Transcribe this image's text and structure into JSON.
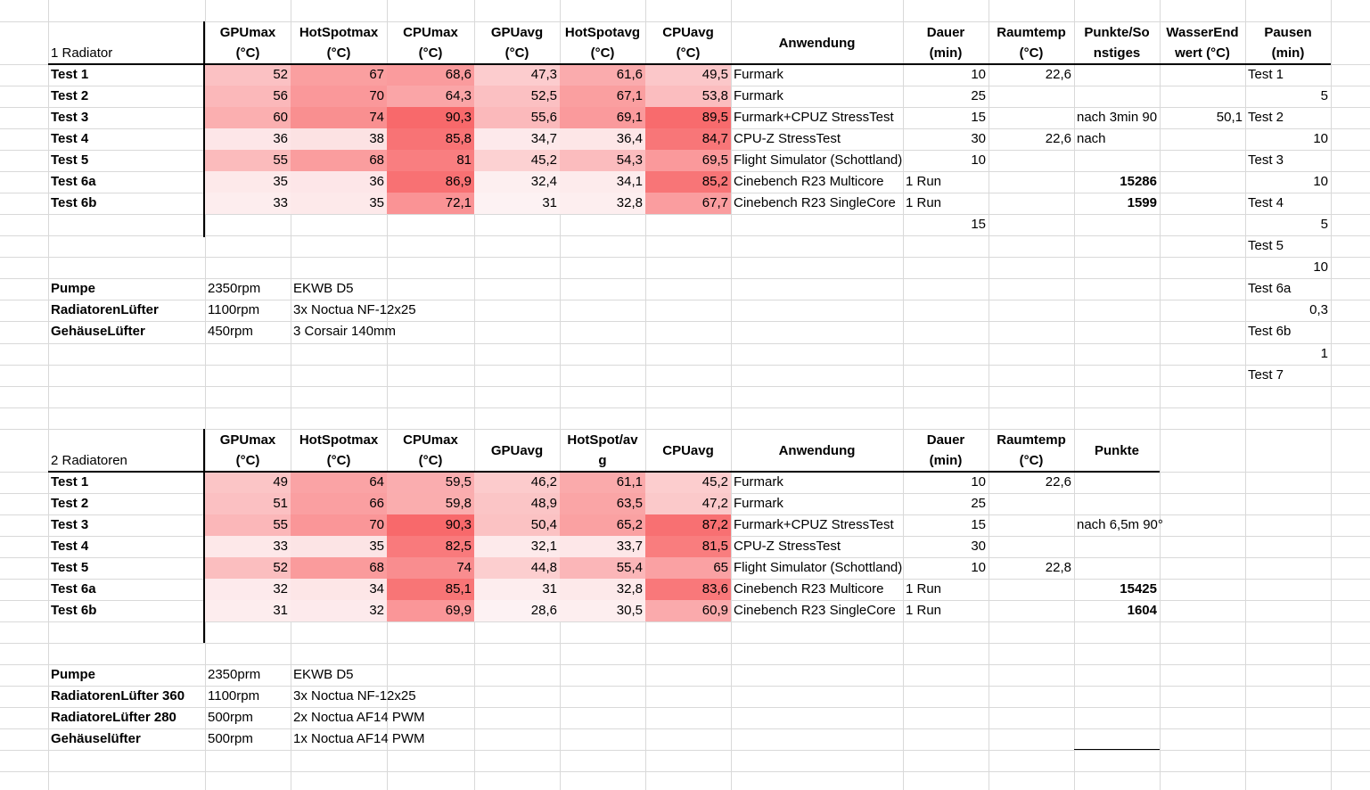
{
  "colors": {
    "heat_low": "#fdf2f3",
    "heat_high": "#f8696b",
    "gridline": "#d9d9d9"
  },
  "section1": {
    "title": "1 Radiator",
    "headers": [
      [
        "GPUmax",
        "(°C)"
      ],
      [
        "HotSpotmax",
        "(°C)"
      ],
      [
        "CPUmax",
        "(°C)"
      ],
      [
        "GPUavg",
        "(°C)"
      ],
      [
        "HotSpotavg",
        "(°C)"
      ],
      [
        "CPUavg",
        "(°C)"
      ],
      [
        "Anwendung",
        ""
      ],
      [
        "Dauer",
        "(min)"
      ],
      [
        "Raumtemp",
        "(°C)"
      ],
      [
        "Punkte/So",
        "nstiges"
      ],
      [
        "WasserEnd",
        "wert (°C)"
      ],
      [
        "Pausen",
        "(min)"
      ]
    ],
    "rows": [
      {
        "label": "Test 1",
        "vals": [
          "52",
          "67",
          "68,6",
          "47,3",
          "61,6",
          "49,5"
        ],
        "app": "Furmark",
        "extra": "",
        "dauer": "10",
        "raum": "22,6",
        "punkte": "",
        "punkte_bold": false,
        "wasser": ""
      },
      {
        "label": "Test 2",
        "vals": [
          "56",
          "70",
          "64,3",
          "52,5",
          "67,1",
          "53,8"
        ],
        "app": "Furmark",
        "extra": "",
        "dauer": "25",
        "raum": "",
        "punkte": "",
        "punkte_bold": false,
        "wasser": ""
      },
      {
        "label": "Test 3",
        "vals": [
          "60",
          "74",
          "90,3",
          "55,6",
          "69,1",
          "89,5"
        ],
        "app": "Furmark+CPUZ StressTest",
        "extra": "",
        "dauer": "15",
        "raum": "",
        "punkte": "nach 3min 90",
        "punkte_bold": false,
        "wasser": "50,1"
      },
      {
        "label": "Test 4",
        "vals": [
          "36",
          "38",
          "85,8",
          "34,7",
          "36,4",
          "84,7"
        ],
        "app": "CPU-Z StressTest",
        "extra": "",
        "dauer": "30",
        "raum": "22,6",
        "punkte": "nach",
        "punkte_bold": false,
        "wasser": ""
      },
      {
        "label": "Test 5",
        "vals": [
          "55",
          "68",
          "81",
          "45,2",
          "54,3",
          "69,5"
        ],
        "app": "Flight Simulator (Schottland)",
        "extra": "",
        "dauer": "10",
        "raum": "",
        "punkte": "",
        "punkte_bold": false,
        "wasser": ""
      },
      {
        "label": "Test 6a",
        "vals": [
          "35",
          "36",
          "86,9",
          "32,4",
          "34,1",
          "85,2"
        ],
        "app": "Cinebench R23 Multicore",
        "extra": "1 Run",
        "dauer": "",
        "raum": "",
        "punkte": "15286",
        "punkte_bold": true,
        "wasser": ""
      },
      {
        "label": "Test 6b",
        "vals": [
          "33",
          "35",
          "72,1",
          "31",
          "32,8",
          "67,7"
        ],
        "app": "Cinebench R23 SingleCore",
        "extra": "1 Run",
        "dauer": "",
        "raum": "",
        "punkte": "1599",
        "punkte_bold": true,
        "wasser": ""
      }
    ],
    "dauer_extra": "15",
    "settings": [
      {
        "label": "Pumpe",
        "rpm": "2350rpm",
        "model": "EKWB D5"
      },
      {
        "label": "RadiatorenLüfter",
        "rpm": "1100rpm",
        "model": "3x Noctua NF-12x25"
      },
      {
        "label": "GehäuseLüfter",
        "rpm": "450rpm",
        "model": "3 Corsair 140mm"
      }
    ]
  },
  "pausen": [
    "Test 1",
    "5",
    "Test 2",
    "10",
    "Test 3",
    "10",
    "Test 4",
    "5",
    "Test 5",
    "10",
    "Test 6a",
    "0,3",
    "Test 6b",
    "1",
    "Test 7"
  ],
  "section2": {
    "title": "2 Radiatoren",
    "headers": [
      [
        "GPUmax",
        "(°C)"
      ],
      [
        "HotSpotmax",
        "(°C)"
      ],
      [
        "CPUmax",
        "(°C)"
      ],
      [
        "GPUavg",
        ""
      ],
      [
        "HotSpot/av",
        "g"
      ],
      [
        "CPUavg",
        ""
      ],
      [
        "Anwendung",
        ""
      ],
      [
        "Dauer",
        "(min)"
      ],
      [
        "Raumtemp",
        "(°C)"
      ],
      [
        "Punkte",
        ""
      ]
    ],
    "rows": [
      {
        "label": "Test 1",
        "vals": [
          "49",
          "64",
          "59,5",
          "46,2",
          "61,1",
          "45,2"
        ],
        "app": "Furmark",
        "extra": "",
        "dauer": "10",
        "raum": "22,6",
        "punkte": "",
        "punkte_bold": false
      },
      {
        "label": "Test 2",
        "vals": [
          "51",
          "66",
          "59,8",
          "48,9",
          "63,5",
          "47,2"
        ],
        "app": "Furmark",
        "extra": "",
        "dauer": "25",
        "raum": "",
        "punkte": "",
        "punkte_bold": false
      },
      {
        "label": "Test 3",
        "vals": [
          "55",
          "70",
          "90,3",
          "50,4",
          "65,2",
          "87,2"
        ],
        "app": "Furmark+CPUZ StressTest",
        "extra": "",
        "dauer": "15",
        "raum": "",
        "punkte": "nach 6,5m 90°",
        "punkte_bold": false
      },
      {
        "label": "Test 4",
        "vals": [
          "33",
          "35",
          "82,5",
          "32,1",
          "33,7",
          "81,5"
        ],
        "app": "CPU-Z StressTest",
        "extra": "",
        "dauer": "30",
        "raum": "",
        "punkte": "",
        "punkte_bold": false
      },
      {
        "label": "Test 5",
        "vals": [
          "52",
          "68",
          "74",
          "44,8",
          "55,4",
          "65"
        ],
        "app": "Flight Simulator (Schottland)",
        "extra": "",
        "dauer": "10",
        "raum": "22,8",
        "punkte": "",
        "punkte_bold": false
      },
      {
        "label": "Test 6a",
        "vals": [
          "32",
          "34",
          "85,1",
          "31",
          "32,8",
          "83,6"
        ],
        "app": "Cinebench R23 Multicore",
        "extra": "1 Run",
        "dauer": "",
        "raum": "",
        "punkte": "15425",
        "punkte_bold": true
      },
      {
        "label": "Test 6b",
        "vals": [
          "31",
          "32",
          "69,9",
          "28,6",
          "30,5",
          "60,9"
        ],
        "app": "Cinebench R23 SingleCore",
        "extra": "1 Run",
        "dauer": "",
        "raum": "",
        "punkte": "1604",
        "punkte_bold": true
      }
    ],
    "settings": [
      {
        "label": "Pumpe",
        "rpm": "2350prm",
        "model": "EKWB D5"
      },
      {
        "label": "RadiatorenLüfter 360",
        "rpm": "1100rpm",
        "model": "3x Noctua NF-12x25"
      },
      {
        "label": "RadiatoreLüfter 280",
        "rpm": "500rpm",
        "model": "2x Noctua AF14 PWM"
      },
      {
        "label": "Gehäuselüfter",
        "rpm": "500rpm",
        "model": "1x Noctua AF14 PWM"
      }
    ]
  }
}
